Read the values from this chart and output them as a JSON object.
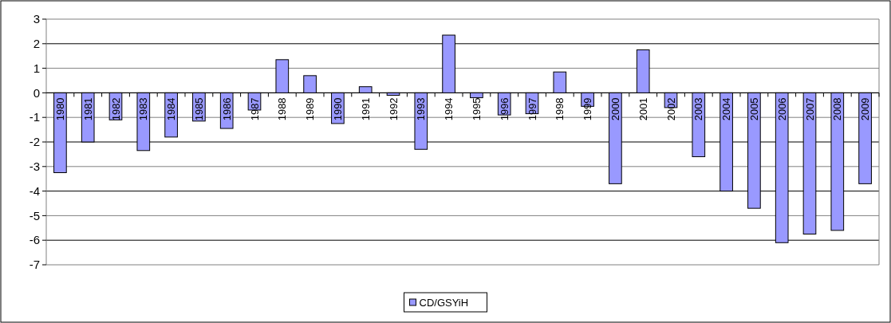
{
  "chart_data": {
    "type": "bar",
    "categories": [
      "1980",
      "1981",
      "1982",
      "1983",
      "1984",
      "1985",
      "1986",
      "1987",
      "1988",
      "1989",
      "1990",
      "1991",
      "1992",
      "1993",
      "1994",
      "1995",
      "1996",
      "1997",
      "1998",
      "1999",
      "2000",
      "2001",
      "2002",
      "2003",
      "2004",
      "2005",
      "2006",
      "2007",
      "2008",
      "2009"
    ],
    "series": [
      {
        "name": "CD/GSYiH",
        "color": "#9999ff",
        "values": [
          -3.25,
          -2.0,
          -1.1,
          -2.35,
          -1.8,
          -1.15,
          -1.45,
          -0.7,
          1.35,
          0.7,
          -1.25,
          0.25,
          -0.1,
          -2.3,
          2.35,
          -0.2,
          -0.9,
          -0.85,
          0.85,
          -0.55,
          -3.7,
          1.75,
          -0.6,
          -2.6,
          -4.0,
          -4.7,
          -6.1,
          -5.75,
          -5.6,
          -3.7
        ]
      }
    ],
    "ylim": [
      -7,
      3
    ],
    "yticks": [
      -7,
      -6,
      -5,
      -4,
      -3,
      -2,
      -1,
      0,
      1,
      2,
      3
    ],
    "grid": "y",
    "legend": "bottom"
  }
}
